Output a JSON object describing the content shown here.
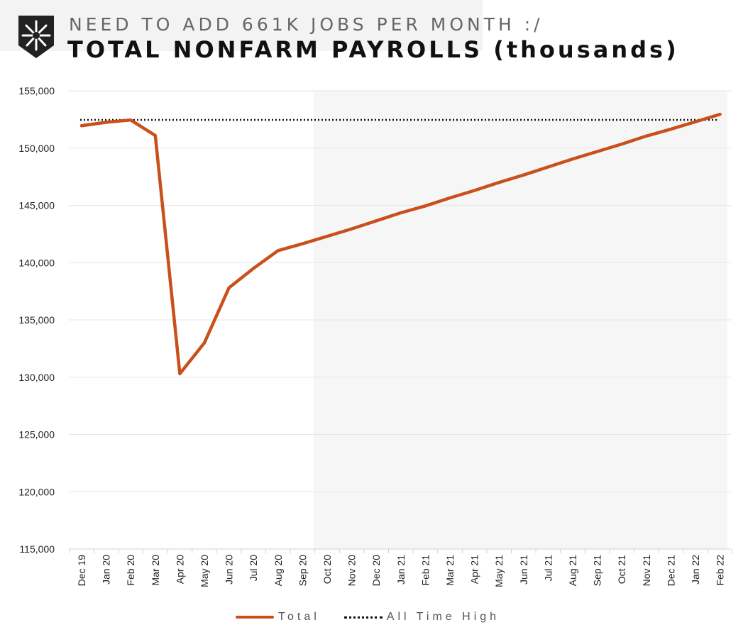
{
  "header": {
    "subtitle": "NEED TO ADD 661K JOBS PER MONTH :/",
    "title": "TOTAL NONFARM PAYROLLS (thousands)"
  },
  "logo": {
    "icon": "sunburst-shield-icon"
  },
  "legend": {
    "total_label": "Total",
    "ath_label": "All Time High"
  },
  "colors": {
    "total": "#c9501c",
    "ath": "#111111",
    "shade": "#f6f6f6",
    "grid": "#e6e6e6"
  },
  "chart_data": {
    "type": "line",
    "title": "TOTAL NONFARM PAYROLLS (thousands)",
    "xlabel": "",
    "ylabel": "",
    "ylim": [
      115000,
      155000
    ],
    "yticks": [
      "115,000",
      "120,000",
      "125,000",
      "130,000",
      "135,000",
      "140,000",
      "145,000",
      "150,000",
      "155,000"
    ],
    "categories": [
      "Dec 19",
      "Jan 20",
      "Feb 20",
      "Mar 20",
      "Apr 20",
      "May 20",
      "Jun 20",
      "Jul 20",
      "Aug 20",
      "Sep 20",
      "Oct 20",
      "Nov 20",
      "Dec 20",
      "Jan 21",
      "Feb 21",
      "Mar 21",
      "Apr 21",
      "May 21",
      "Jun 21",
      "Jul 21",
      "Aug 21",
      "Sep 21",
      "Oct 21",
      "Nov 21",
      "Dec 21",
      "Jan 22",
      "Feb 22"
    ],
    "series": [
      {
        "name": "Total",
        "style": "solid",
        "values": [
          151950,
          152250,
          152450,
          151100,
          130300,
          133000,
          137800,
          139500,
          141050,
          141650,
          142300,
          142950,
          143650,
          144350,
          144950,
          145650,
          146300,
          147000,
          147650,
          148350,
          149050,
          149700,
          150350,
          151050,
          151650,
          152300,
          152950
        ]
      },
      {
        "name": "All Time High",
        "style": "dotted",
        "value": 152460
      }
    ],
    "shaded_region": {
      "from": "Oct 20",
      "to": "Feb 22"
    },
    "grid": true,
    "legend_position": "bottom"
  }
}
